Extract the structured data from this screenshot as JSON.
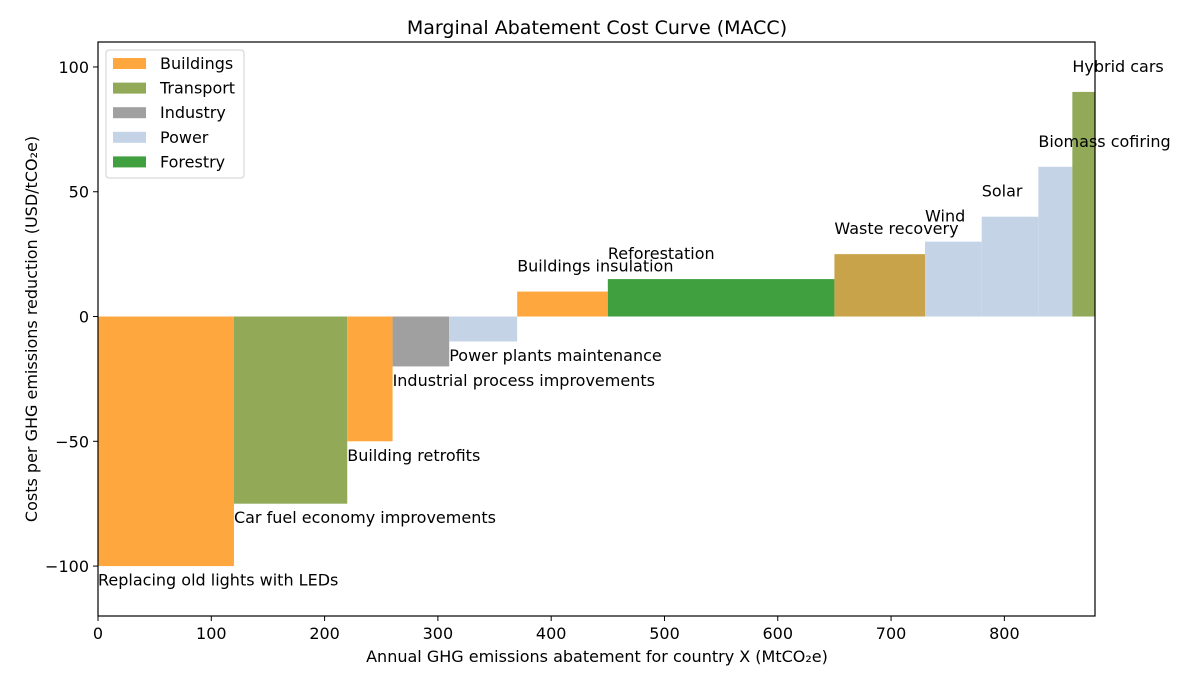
{
  "chart_data": {
    "type": "bar",
    "title": "Marginal Abatement Cost Curve (MACC)",
    "xlabel": "Annual GHG emissions abatement for country X (MtCO₂e)",
    "ylabel": "Costs per GHG emissions reduction (USD/tCO₂e)",
    "xlim": [
      0,
      880
    ],
    "ylim": [
      -120,
      110
    ],
    "xticks": [
      0,
      100,
      200,
      300,
      400,
      500,
      600,
      700,
      800
    ],
    "yticks": [
      -100,
      -50,
      0,
      50,
      100
    ],
    "ytick_labels": [
      "−100",
      "−50",
      "0",
      "50",
      "100"
    ],
    "grid": false,
    "legend_position": "top-left",
    "sectors": [
      {
        "name": "Buildings",
        "color": "#ffa73f"
      },
      {
        "name": "Transport",
        "color": "#92aa58"
      },
      {
        "name": "Industry",
        "color": "#a0a0a0"
      },
      {
        "name": "Power",
        "color": "#c4d3e6"
      },
      {
        "name": "Forestry",
        "color": "#40a040"
      }
    ],
    "measures": [
      {
        "label": "Replacing old lights with LEDs",
        "start": 0,
        "abatement": 120,
        "cost": -100,
        "sector": "Buildings",
        "color": "#ffa73f"
      },
      {
        "label": "Car fuel economy improvements",
        "start": 120,
        "abatement": 100,
        "cost": -75,
        "sector": "Transport",
        "color": "#92aa58"
      },
      {
        "label": "Building retrofits",
        "start": 220,
        "abatement": 40,
        "cost": -50,
        "sector": "Buildings",
        "color": "#ffa73f"
      },
      {
        "label": "Industrial process improvements",
        "start": 260,
        "abatement": 50,
        "cost": -20,
        "sector": "Industry",
        "color": "#a0a0a0"
      },
      {
        "label": "Power plants maintenance",
        "start": 310,
        "abatement": 60,
        "cost": -10,
        "sector": "Power",
        "color": "#c4d3e6"
      },
      {
        "label": "Buildings insulation",
        "start": 370,
        "abatement": 80,
        "cost": 10,
        "sector": "Buildings",
        "color": "#ffa73f"
      },
      {
        "label": "Reforestation",
        "start": 450,
        "abatement": 200,
        "cost": 15,
        "sector": "Forestry",
        "color": "#40a040"
      },
      {
        "label": "Waste recovery",
        "start": 650,
        "abatement": 80,
        "cost": 25,
        "sector": "",
        "color": "#c8a34a"
      },
      {
        "label": "Wind",
        "start": 730,
        "abatement": 50,
        "cost": 30,
        "sector": "Power",
        "color": "#c4d3e6"
      },
      {
        "label": "Solar",
        "start": 780,
        "abatement": 50,
        "cost": 40,
        "sector": "Power",
        "color": "#c4d3e6"
      },
      {
        "label": "Biomass cofiring",
        "start": 830,
        "abatement": 30,
        "cost": 60,
        "sector": "Power",
        "color": "#c4d3e6"
      },
      {
        "label": "Hybrid cars",
        "start": 860,
        "abatement": 20,
        "cost": 90,
        "sector": "Transport",
        "color": "#92aa58"
      }
    ]
  }
}
